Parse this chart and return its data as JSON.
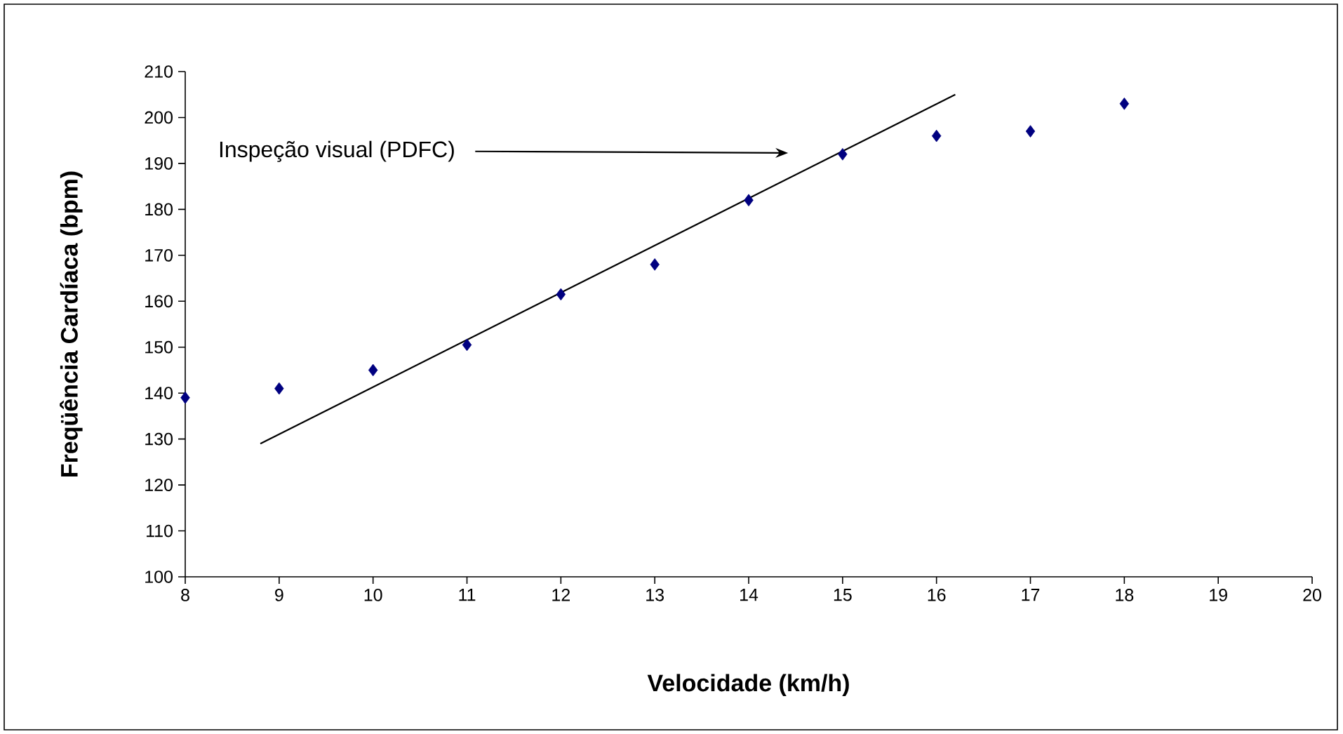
{
  "chart_data": {
    "type": "scatter",
    "xlabel": "Velocidade (km/h)",
    "ylabel": "Freqüência Cardíaca (bpm)",
    "xlim": [
      8,
      20
    ],
    "xticks": [
      8,
      9,
      10,
      11,
      12,
      13,
      14,
      15,
      16,
      17,
      18,
      19,
      20
    ],
    "ylim": [
      100,
      210
    ],
    "yticks": [
      100,
      110,
      120,
      130,
      140,
      150,
      160,
      170,
      180,
      190,
      200,
      210
    ],
    "grid": false,
    "series": [
      {
        "marker": "diamond",
        "color": "#000080",
        "x": [
          8,
          9,
          10,
          11,
          12,
          13,
          14,
          15,
          16,
          17,
          18
        ],
        "values": [
          139,
          141,
          145,
          150.5,
          161.5,
          168,
          182,
          192,
          196,
          197,
          203
        ]
      },
      {
        "type": "line",
        "marker": "none",
        "line_style": "solid",
        "color": "#000000",
        "x": [
          8.8,
          16.2
        ],
        "values": [
          129,
          205
        ]
      }
    ],
    "annotations": [
      "Inspeção visual (PDFC)"
    ]
  }
}
